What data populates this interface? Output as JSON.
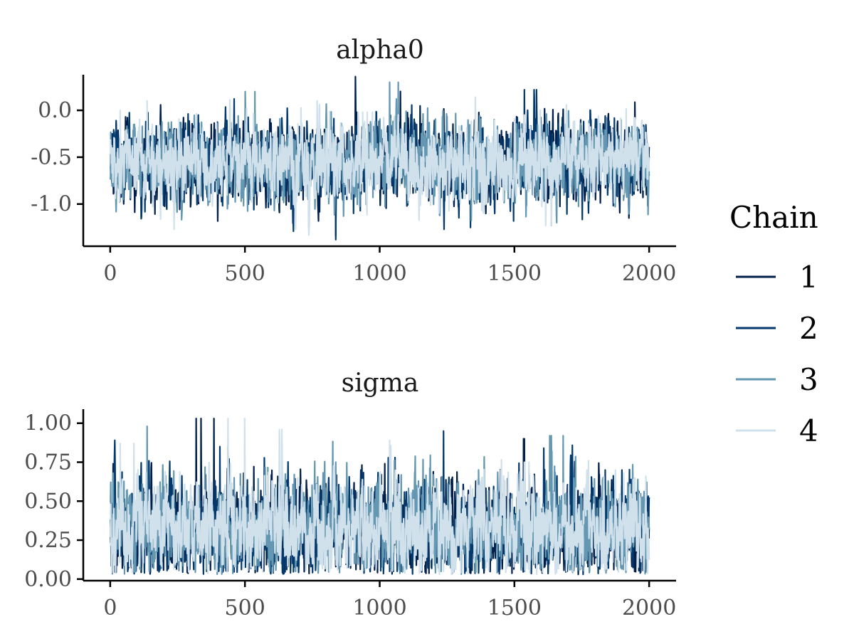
{
  "legend": {
    "title": "Chain",
    "position": "right",
    "entries": [
      {
        "label": "1",
        "color": "#011f4b"
      },
      {
        "label": "2",
        "color": "#03396c"
      },
      {
        "label": "3",
        "color": "#6497b1"
      },
      {
        "label": "4",
        "color": "#d1e1ec"
      }
    ]
  },
  "chart_data": [
    {
      "type": "line",
      "title": "alpha0",
      "xlabel": "",
      "ylabel": "",
      "xlim": [
        -100,
        2100
      ],
      "ylim": [
        -1.45,
        0.38
      ],
      "x_ticks": [
        0,
        500,
        1000,
        1500,
        2000
      ],
      "x_tick_labels": [
        "0",
        "500",
        "1000",
        "1500",
        "2000"
      ],
      "y_ticks": [
        0.0,
        -0.5,
        -1.0
      ],
      "y_tick_labels": [
        "0.0",
        "-0.5",
        "-1.0"
      ],
      "grid": false,
      "n_iterations": 2000,
      "trace_summary": {
        "mean": -0.55,
        "sd": 0.2
      },
      "series": [
        {
          "name": "1",
          "color": "#011f4b",
          "seed": 11,
          "values": [
            -0.52,
            -0.61,
            -0.48,
            -0.7,
            -0.33,
            -0.12,
            -0.55,
            -0.88,
            -1.34,
            -0.6,
            -0.41,
            -0.25,
            -0.05,
            -0.66,
            -0.95,
            -0.45,
            -0.22,
            -0.58,
            -0.8,
            -0.47
          ]
        },
        {
          "name": "2",
          "color": "#03396c",
          "seed": 23,
          "values": [
            -0.5,
            -0.73,
            -0.2,
            -0.44,
            -1.0,
            -0.62,
            -0.08,
            -0.35,
            -1.38,
            -0.57,
            -0.3,
            -0.15,
            -0.85,
            -1.25,
            -0.52,
            0.22,
            -0.4,
            -0.91,
            -0.06,
            -0.55
          ]
        },
        {
          "name": "3",
          "color": "#6497b1",
          "seed": 37,
          "values": [
            -0.58,
            -0.42,
            -1.15,
            -0.3,
            -0.7,
            0.2,
            -0.65,
            -1.26,
            -0.48,
            -0.21,
            0.3,
            -0.75,
            -0.45,
            -0.93,
            -0.17,
            -0.6,
            -1.23,
            -0.38,
            -0.52,
            -0.61
          ]
        },
        {
          "name": "4",
          "color": "#d1e1ec",
          "seed": 53,
          "values": [
            0.0,
            0.1,
            -1.27,
            -0.55,
            -0.4,
            -0.7,
            -0.3,
            -1.33,
            -0.5,
            -0.02,
            -0.62,
            -0.45,
            -0.85,
            -0.35,
            -0.58,
            -0.05,
            -1.23,
            -0.48,
            -0.66,
            -0.52
          ]
        }
      ]
    },
    {
      "type": "line",
      "title": "sigma",
      "xlabel": "",
      "ylabel": "",
      "xlim": [
        -100,
        2100
      ],
      "ylim": [
        -0.01,
        1.09
      ],
      "x_ticks": [
        0,
        500,
        1000,
        1500,
        2000
      ],
      "x_tick_labels": [
        "0",
        "500",
        "1000",
        "1500",
        "2000"
      ],
      "y_ticks": [
        0.0,
        0.25,
        0.5,
        0.75,
        1.0
      ],
      "y_tick_labels": [
        "0.00",
        "0.25",
        "0.50",
        "0.75",
        "1.00"
      ],
      "grid": false,
      "n_iterations": 2000,
      "trace_summary": {
        "mean": 0.3,
        "sd": 0.15
      },
      "series": [
        {
          "name": "1",
          "color": "#011f4b",
          "seed": 71,
          "values": [
            0.2,
            0.45,
            0.1,
            1.03,
            0.3,
            0.12,
            0.6,
            0.25,
            0.08,
            0.35,
            0.7,
            0.15,
            0.4,
            0.05,
            0.55,
            0.9,
            0.2,
            0.03,
            0.45,
            0.3
          ]
        },
        {
          "name": "2",
          "color": "#03396c",
          "seed": 83,
          "values": [
            0.35,
            0.6,
            0.15,
            0.5,
            0.85,
            0.2,
            0.1,
            0.45,
            0.3,
            0.65,
            0.05,
            0.4,
            0.95,
            0.25,
            0.12,
            0.55,
            0.84,
            0.18,
            0.7,
            0.3
          ]
        },
        {
          "name": "3",
          "color": "#6497b1",
          "seed": 97,
          "values": [
            0.5,
            0.98,
            0.3,
            0.2,
            0.65,
            0.08,
            0.45,
            0.25,
            0.75,
            0.1,
            0.4,
            0.6,
            0.15,
            0.35,
            0.5,
            0.2,
            0.92,
            0.3,
            0.12,
            0.4
          ]
        },
        {
          "name": "4",
          "color": "#d1e1ec",
          "seed": 109,
          "values": [
            0.87,
            0.3,
            0.45,
            0.2,
            1.03,
            0.35,
            0.96,
            0.1,
            0.5,
            0.25,
            0.89,
            0.4,
            0.05,
            0.6,
            0.3,
            0.75,
            0.2,
            0.45,
            0.15,
            0.35
          ]
        }
      ]
    }
  ]
}
